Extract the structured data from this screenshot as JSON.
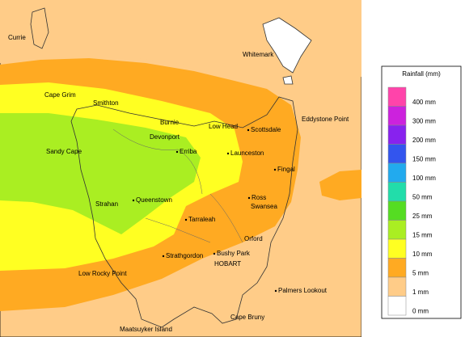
{
  "legend": {
    "title": "Rainfall (mm)",
    "items": [
      {
        "label": "400 mm",
        "color": "#ff44aa"
      },
      {
        "label": "300 mm",
        "color": "#cc22dd"
      },
      {
        "label": "200 mm",
        "color": "#8822ee"
      },
      {
        "label": "150 mm",
        "color": "#3355ee"
      },
      {
        "label": "100 mm",
        "color": "#22aaee"
      },
      {
        "label": "50 mm",
        "color": "#22ddaa"
      },
      {
        "label": "25 mm",
        "color": "#55dd22"
      },
      {
        "label": "15 mm",
        "color": "#aaee22"
      },
      {
        "label": "10 mm",
        "color": "#ffff22"
      },
      {
        "label": "5 mm",
        "color": "#ffaa22"
      },
      {
        "label": "1 mm",
        "color": "#ffcc88"
      },
      {
        "label": "0 mm",
        "color": "#ffffff"
      }
    ]
  },
  "places": [
    "Currie",
    "Whitemark",
    "Cape Grim",
    "Smithton",
    "Burnie",
    "Devonport",
    "Low Head",
    "Scottsdale",
    "Eddystone Point",
    "Sandy Cape",
    "Erriba",
    "Launceston",
    "Fingal",
    "Ross",
    "Swansea",
    "Strahan",
    "Queenstown",
    "Tarraleah",
    "Orford",
    "Strathgordon",
    "Bushy Park",
    "HOBART",
    "Low Rocky Point",
    "Palmers Lookout",
    "Cape Bruny",
    "Maatsuyker Island"
  ]
}
